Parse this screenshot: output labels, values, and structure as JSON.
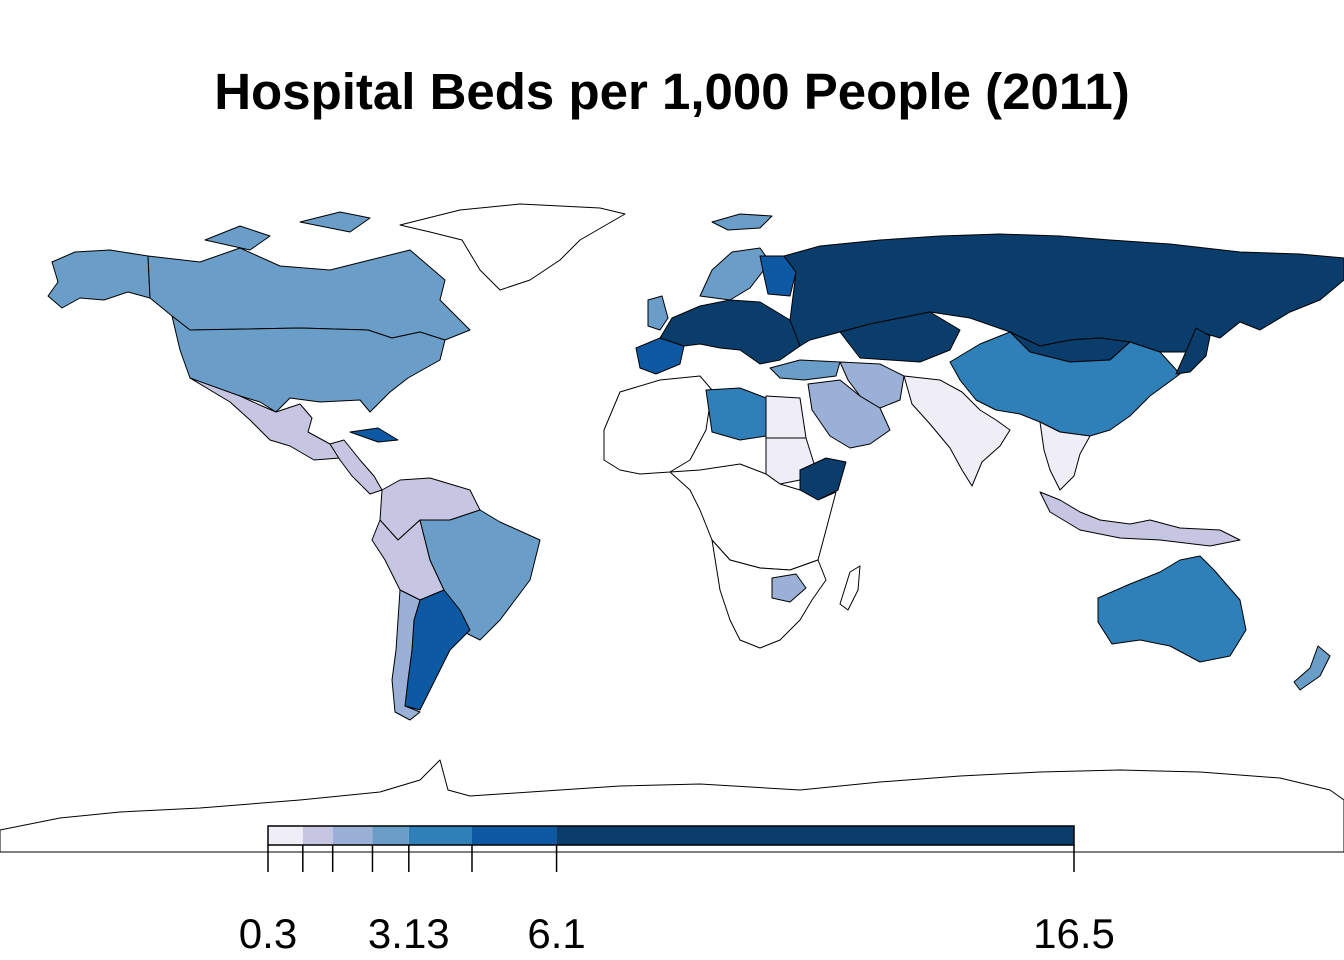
{
  "title": "Hospital Beds per 1,000 People (2011)",
  "legend": {
    "breaks": [
      0.3,
      1.0,
      1.6,
      2.4,
      3.13,
      4.4,
      6.1,
      16.5
    ],
    "colors": [
      "#efedf5",
      "#c6c6e2",
      "#9ab0d6",
      "#6a9ec9",
      "#2f7fb9",
      "#0e59a3",
      "#0a3d6b"
    ],
    "labels": [
      {
        "text": "0.3",
        "at": 0.3
      },
      {
        "text": "3.13",
        "at": 3.13
      },
      {
        "text": "6.1",
        "at": 6.1
      },
      {
        "text": "16.5",
        "at": 16.5
      }
    ]
  },
  "regions": [
    {
      "name": "alaska",
      "cls": 3
    },
    {
      "name": "canada",
      "cls": 3
    },
    {
      "name": "usa",
      "cls": 3
    },
    {
      "name": "mexico",
      "cls": 1
    },
    {
      "name": "central-america",
      "cls": 1
    },
    {
      "name": "cuba",
      "cls": 5
    },
    {
      "name": "colombia-venezuela",
      "cls": 1
    },
    {
      "name": "peru-bolivia",
      "cls": 1
    },
    {
      "name": "brazil",
      "cls": 3
    },
    {
      "name": "argentina",
      "cls": 5
    },
    {
      "name": "chile",
      "cls": 2
    },
    {
      "name": "greenland",
      "cls": -1
    },
    {
      "name": "iceland",
      "cls": 3
    },
    {
      "name": "uk",
      "cls": 3
    },
    {
      "name": "iberia",
      "cls": 5
    },
    {
      "name": "central-europe",
      "cls": 6
    },
    {
      "name": "scandinavia",
      "cls": 3
    },
    {
      "name": "finland",
      "cls": 5
    },
    {
      "name": "russia",
      "cls": 6
    },
    {
      "name": "kazakhstan",
      "cls": 6
    },
    {
      "name": "turkey",
      "cls": 3
    },
    {
      "name": "middle-east",
      "cls": 2
    },
    {
      "name": "iran",
      "cls": 2
    },
    {
      "name": "china",
      "cls": 4
    },
    {
      "name": "mongolia",
      "cls": 6
    },
    {
      "name": "india",
      "cls": 0
    },
    {
      "name": "southeast-asia",
      "cls": 0
    },
    {
      "name": "japan",
      "cls": 6
    },
    {
      "name": "indonesia",
      "cls": 1
    },
    {
      "name": "north-africa",
      "cls": -1
    },
    {
      "name": "libya",
      "cls": 4
    },
    {
      "name": "egypt",
      "cls": 0
    },
    {
      "name": "sudan",
      "cls": 0
    },
    {
      "name": "ethiopia",
      "cls": 6
    },
    {
      "name": "central-africa",
      "cls": -1
    },
    {
      "name": "southern-africa",
      "cls": -1
    },
    {
      "name": "zimbabwe",
      "cls": 2
    },
    {
      "name": "madagascar",
      "cls": -1
    },
    {
      "name": "australia",
      "cls": 4
    },
    {
      "name": "new-zealand",
      "cls": 3
    },
    {
      "name": "antarctica",
      "cls": -1
    }
  ]
}
